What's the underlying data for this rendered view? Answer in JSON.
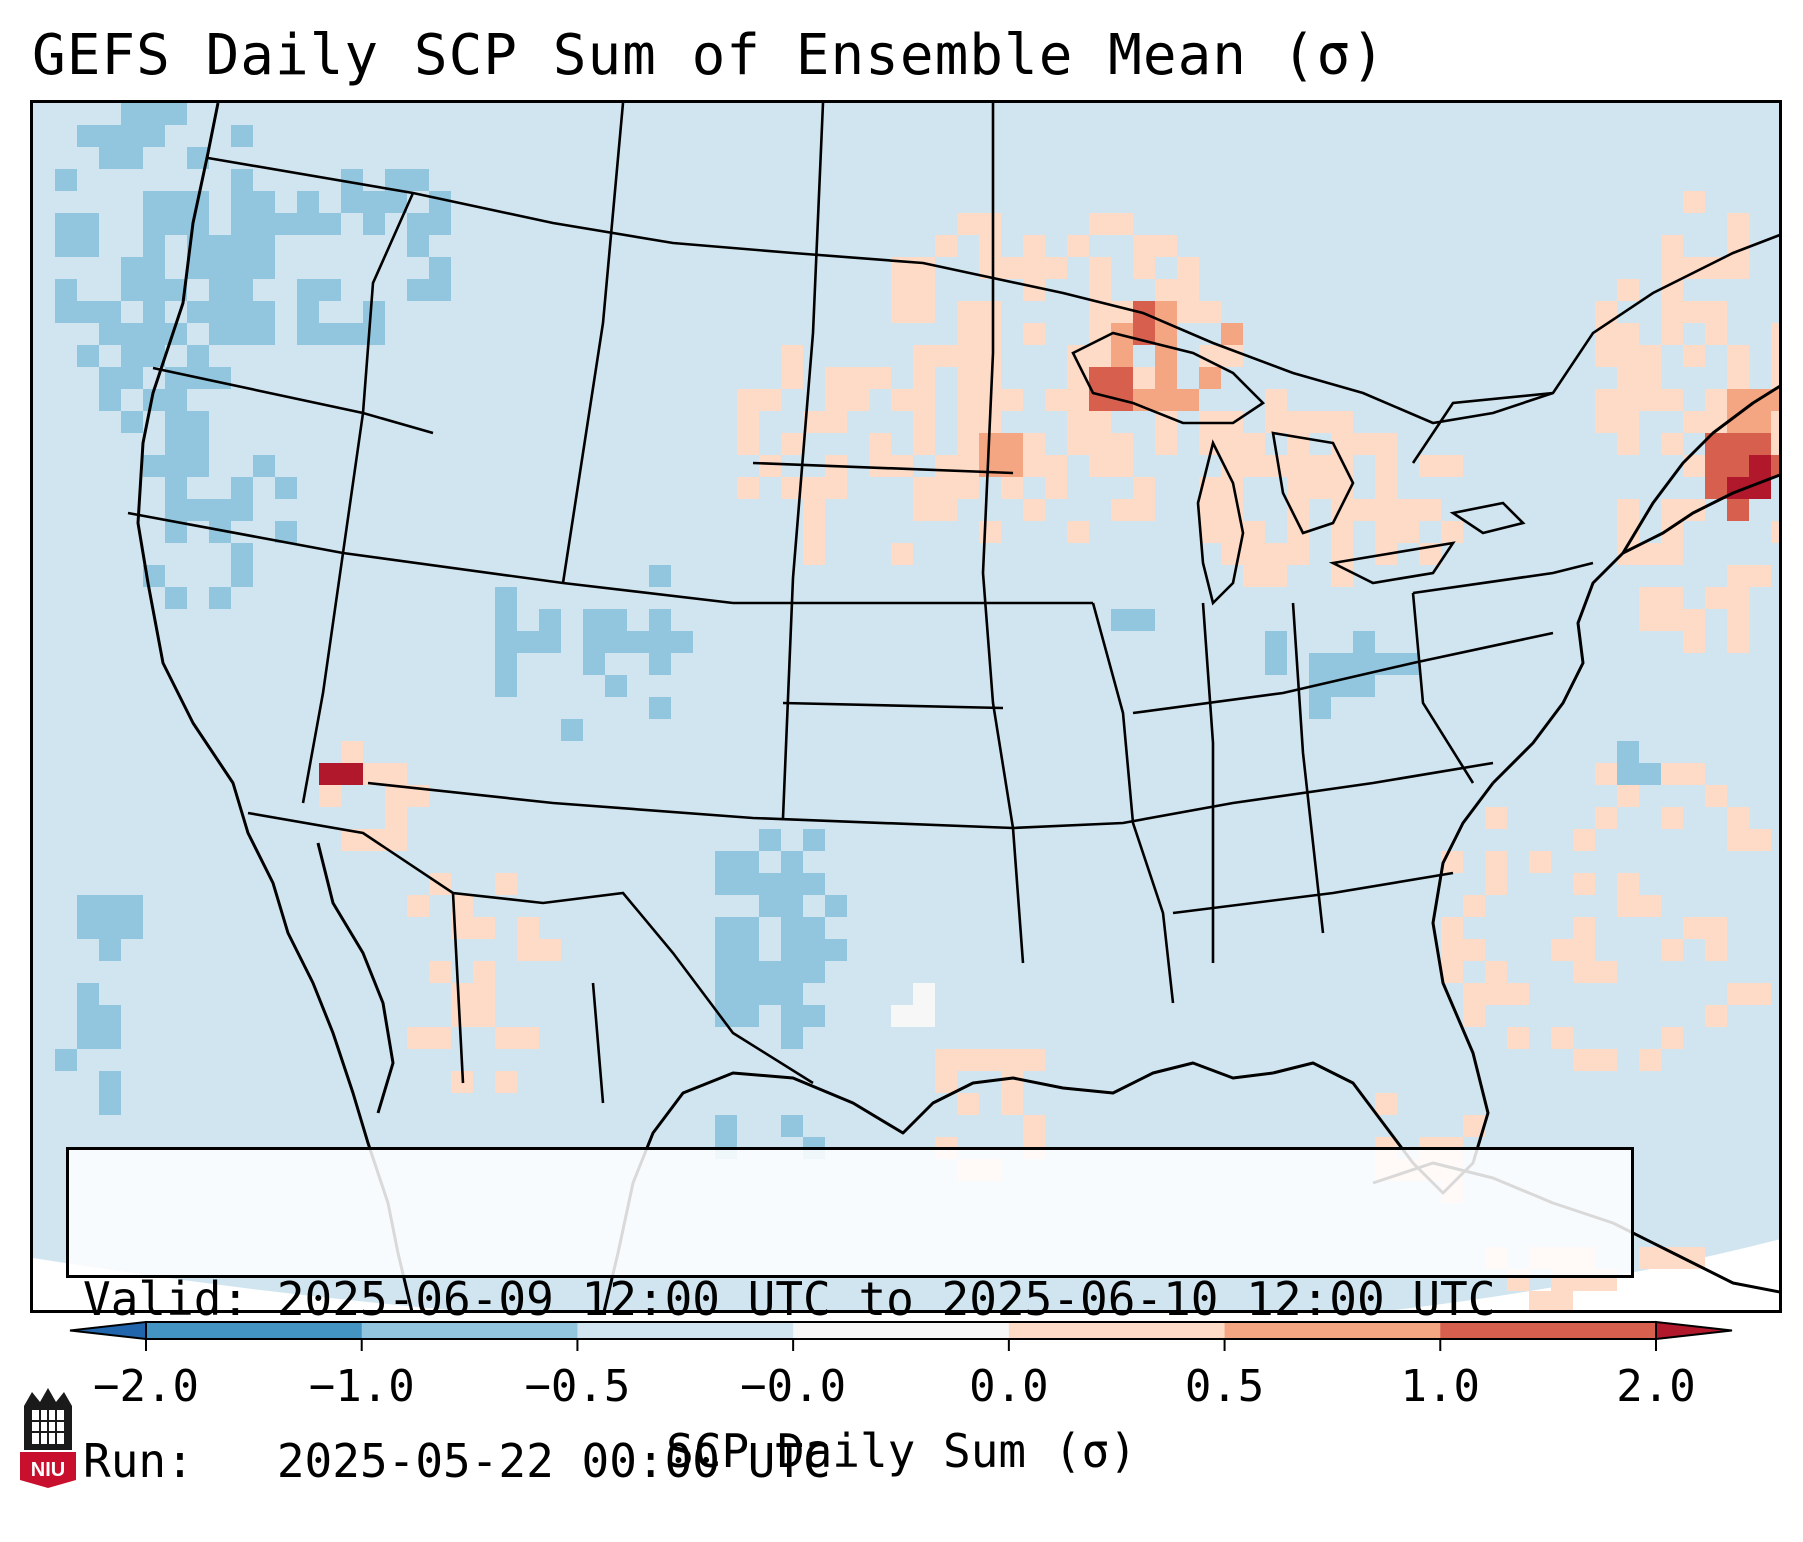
{
  "title": "GEFS Daily SCP Sum of Ensemble Mean (σ)",
  "info": {
    "valid_line": "Valid: 2025-06-09 12:00 UTC to 2025-06-10 12:00 UTC",
    "run_line": "Run:   2025-05-22 00:00 UTC"
  },
  "colorbar": {
    "label": "SCP Daily Sum (σ)",
    "ticks": [
      "−2.0",
      "−1.0",
      "−0.5",
      "−0.0",
      "0.0",
      "0.5",
      "1.0",
      "2.0"
    ],
    "bins": [
      {
        "range": "< -2.0",
        "color": "#2166ac"
      },
      {
        "range": "-2.0 to -1.0",
        "color": "#4393c3"
      },
      {
        "range": "-1.0 to -0.5",
        "color": "#92c5de"
      },
      {
        "range": "-0.5 to -0.0",
        "color": "#d1e5f0"
      },
      {
        "range": "-0.0 to 0.0",
        "color": "#f7f7f7"
      },
      {
        "range": "0.0 to 0.5",
        "color": "#fddbc7"
      },
      {
        "range": "0.5 to 1.0",
        "color": "#f4a582"
      },
      {
        "range": "1.0 to 2.0",
        "color": "#d6604d"
      },
      {
        "range": "> 2.0",
        "color": "#b2182b"
      }
    ]
  },
  "map": {
    "region": "CONUS",
    "background_color": "#d1e5f0",
    "anomaly_areas": [
      {
        "region": "Pacific Northwest offshore",
        "bin": "-1.0 to -0.5"
      },
      {
        "region": "Utah / Colorado",
        "bin": "-1.0 to -0.5"
      },
      {
        "region": "West Texas",
        "bin": "-1.0 to -0.5"
      },
      {
        "region": "Upper Midwest / Minnesota",
        "bin": "0.0 to 0.5"
      },
      {
        "region": "Lake Superior",
        "bin": "1.0 to 2.0"
      },
      {
        "region": "Southern New England offshore",
        "bin": "> 2.0"
      },
      {
        "region": "Southern California",
        "bin": "> 2.0"
      }
    ]
  },
  "logo": {
    "text": "NIU"
  }
}
